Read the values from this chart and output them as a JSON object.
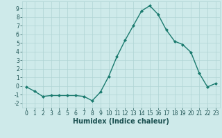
{
  "x": [
    0,
    1,
    2,
    3,
    4,
    5,
    6,
    7,
    8,
    9,
    10,
    11,
    12,
    13,
    14,
    15,
    16,
    17,
    18,
    19,
    20,
    21,
    22,
    23
  ],
  "y": [
    -0.1,
    -0.6,
    -1.2,
    -1.1,
    -1.1,
    -1.1,
    -1.1,
    -1.2,
    -1.7,
    -0.7,
    1.1,
    3.4,
    5.3,
    7.0,
    8.7,
    9.3,
    8.3,
    6.5,
    5.2,
    4.8,
    3.9,
    1.5,
    -0.1,
    0.3
  ],
  "line_color": "#1a7a6e",
  "marker": "D",
  "marker_size": 2.0,
  "linewidth": 1.0,
  "xlabel": "Humidex (Indice chaleur)",
  "ylim": [
    -2.5,
    9.8
  ],
  "xlim": [
    -0.5,
    23.5
  ],
  "yticks": [
    -2,
    -1,
    0,
    1,
    2,
    3,
    4,
    5,
    6,
    7,
    8,
    9
  ],
  "xticks": [
    0,
    1,
    2,
    3,
    4,
    5,
    6,
    7,
    8,
    9,
    10,
    11,
    12,
    13,
    14,
    15,
    16,
    17,
    18,
    19,
    20,
    21,
    22,
    23
  ],
  "bg_color": "#ceeaea",
  "grid_color": "#afd4d4",
  "tick_color": "#1a5050",
  "tick_fontsize": 5.5,
  "xlabel_fontsize": 7.0,
  "xlabel_fontweight": "bold"
}
